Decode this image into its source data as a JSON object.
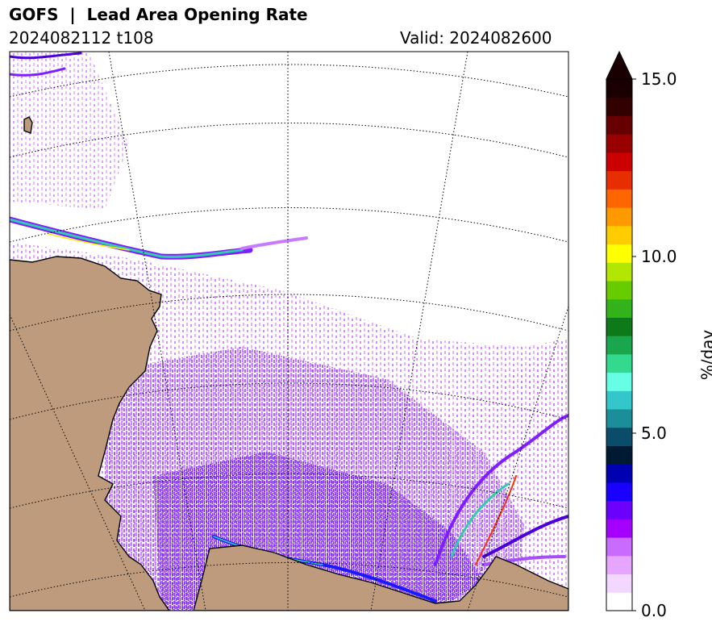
{
  "header": {
    "title": "GOFS  |  Lead Area Opening Rate",
    "init": "2024082112 t108",
    "valid": "Valid: 2024082600"
  },
  "colorbar": {
    "label": "%/day",
    "ticks": [
      "15.0",
      "10.0",
      "5.0",
      "0.0"
    ],
    "range": [
      0,
      15
    ],
    "extend": "max",
    "colors": [
      "#ffffff",
      "#f3d7ff",
      "#e6a6ff",
      "#c96bff",
      "#a400ff",
      "#6b00ff",
      "#1a00ff",
      "#0000b3",
      "#001a33",
      "#0a4d6b",
      "#1a8f99",
      "#33c7cc",
      "#66ffe6",
      "#33d98c",
      "#1aa64d",
      "#0d7a1a",
      "#33b31a",
      "#66cc00",
      "#b3e600",
      "#ffff00",
      "#ffcc00",
      "#ff9900",
      "#ff6600",
      "#e62e00",
      "#cc0000",
      "#990000",
      "#660000",
      "#330000",
      "#1a0000"
    ]
  },
  "map": {
    "land_color": "#bf9b7d",
    "ice_colors": [
      "#e3a3ff",
      "#c77bff",
      "#a64dff",
      "#7f1fff",
      "#4b00d9",
      "#1a1aff",
      "#33ccaa",
      "#ffee00",
      "#ff3300"
    ]
  }
}
